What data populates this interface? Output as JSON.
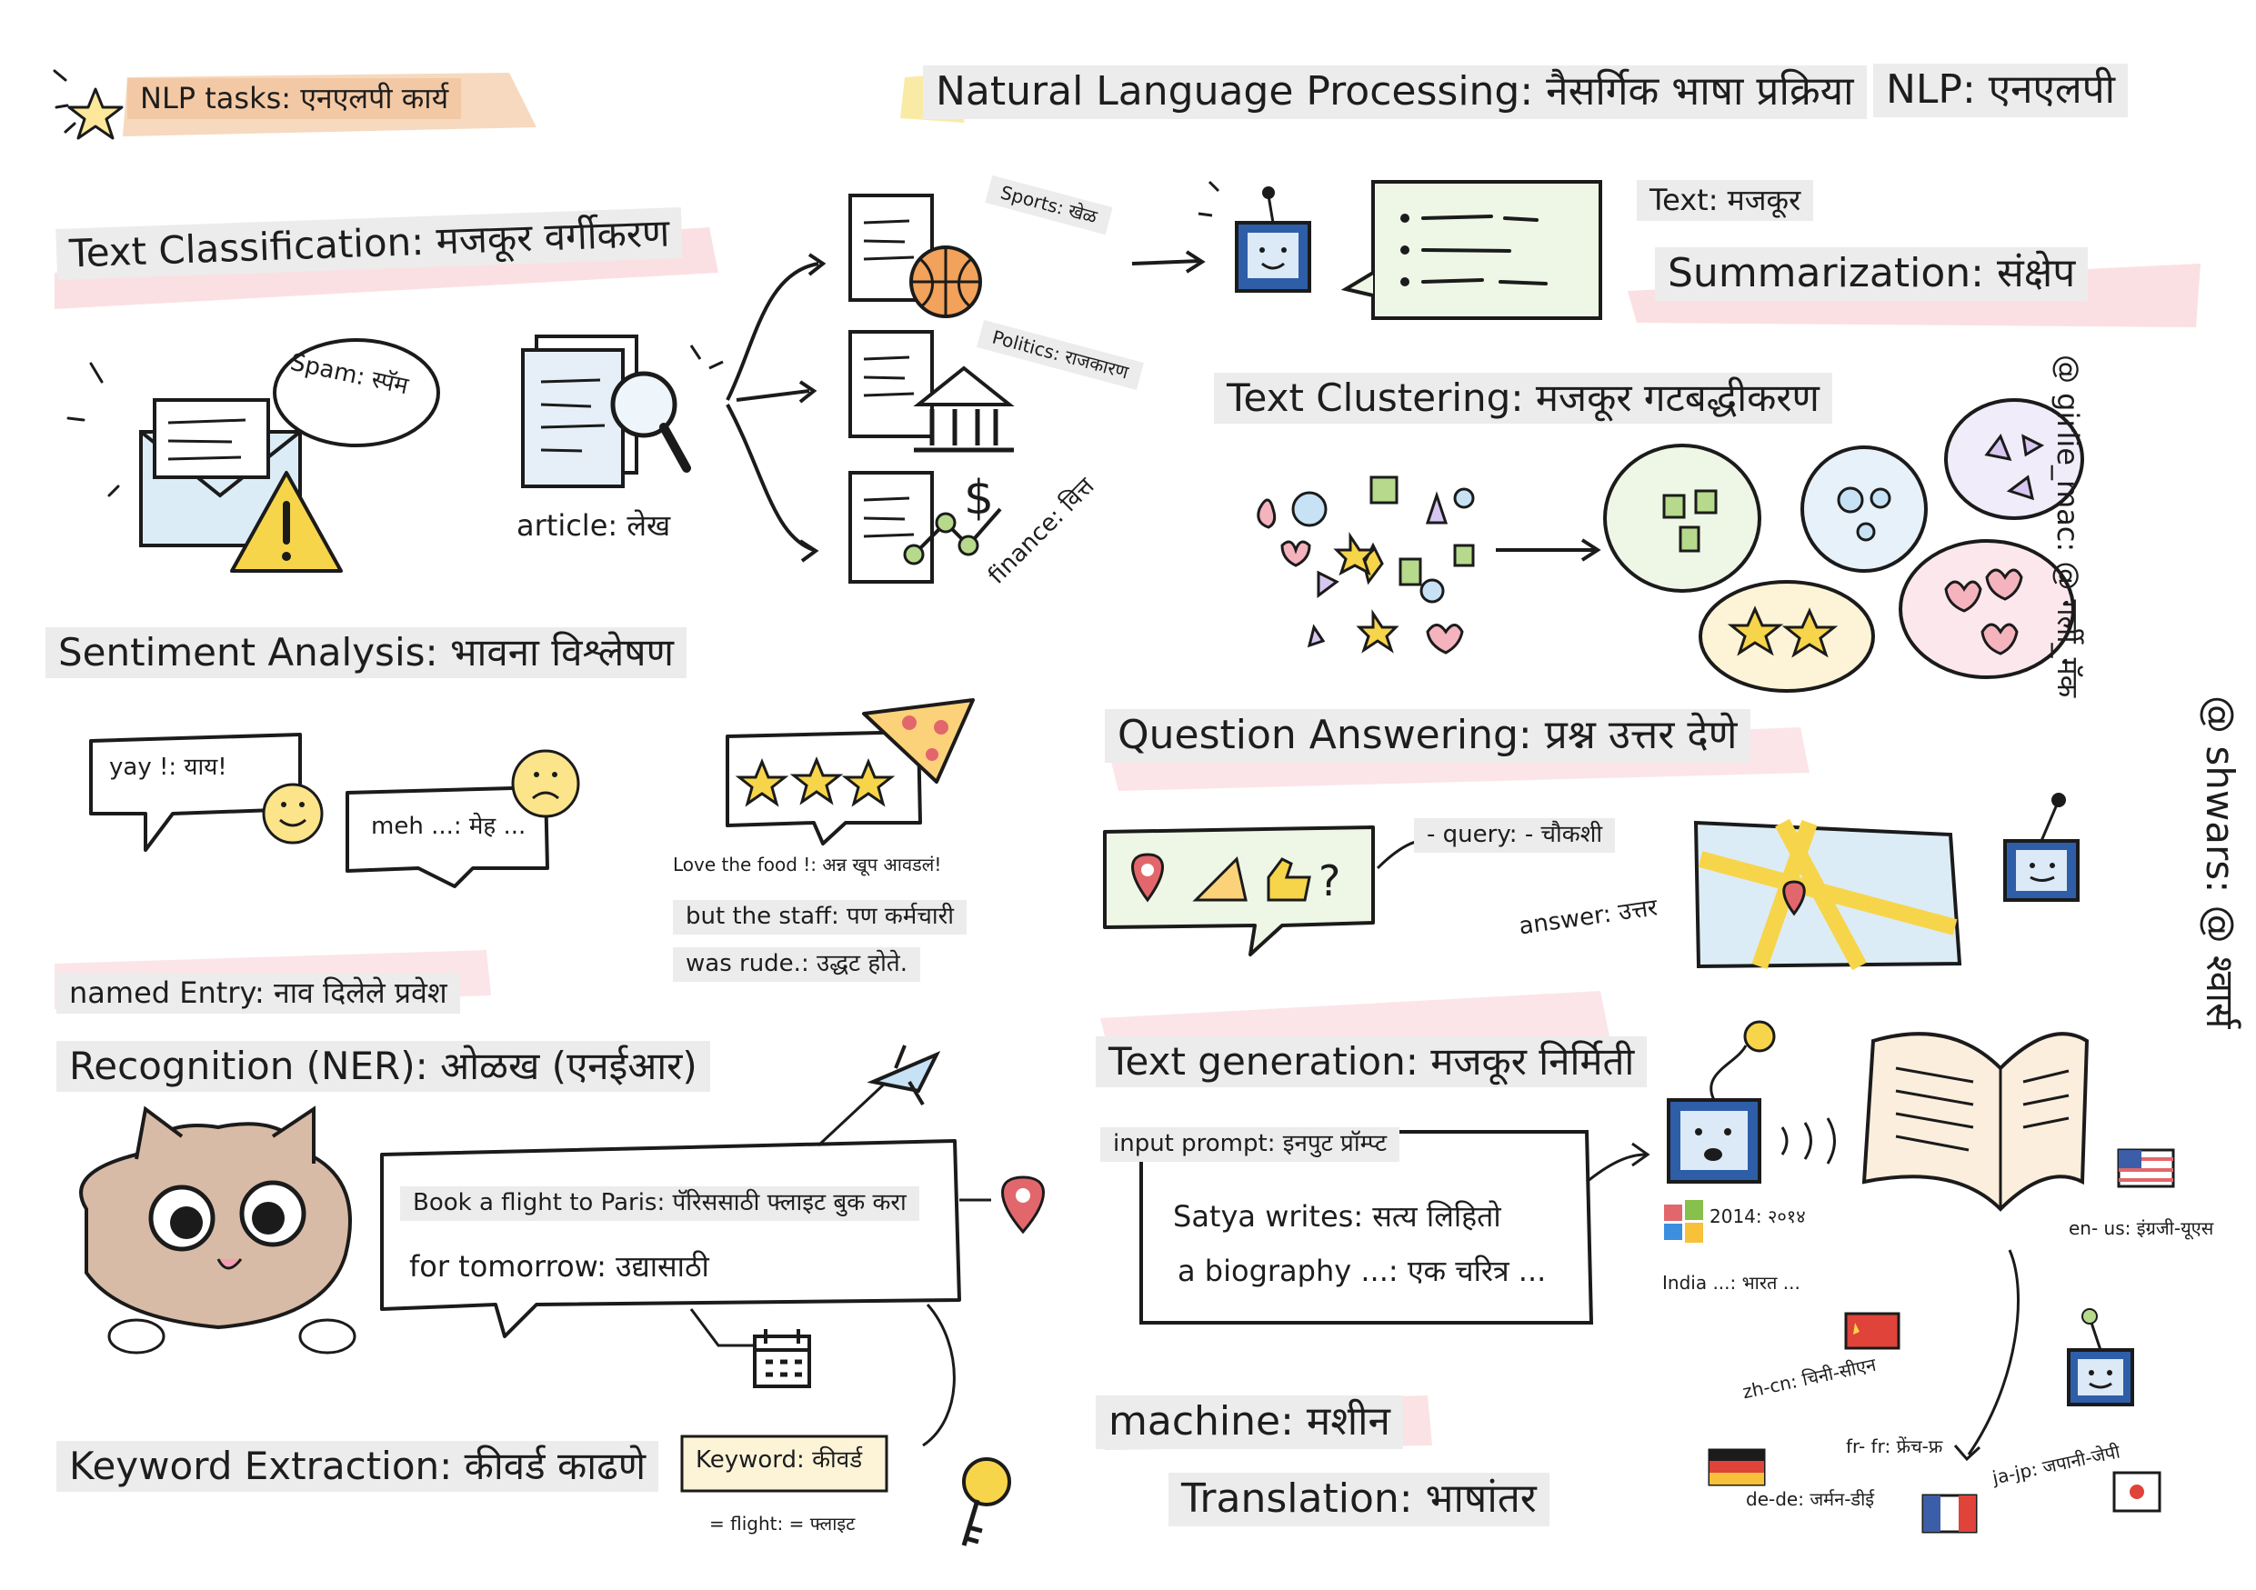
{
  "texts": {
    "nlp_tasks": "NLP tasks: एनएलपी कार्य",
    "nlp_title": "Natural Language Processing: नैसर्गिक भाषा प्रक्रिया",
    "nlp_abbr": "NLP: एनएलपी",
    "text_classification": "Text Classification: मजकूर वर्गीकरण",
    "spam": "Spam: स्पॅम",
    "article": "article: लेख",
    "sports": "Sports: खेळ",
    "politics": "Politics: राजकारण",
    "finance": "finance: वित्त",
    "text_label": "Text: मजकूर",
    "summarization": "Summarization: संक्षेप",
    "text_clustering": "Text Clustering: मजकूर गटबद्धीकरण",
    "sentiment_analysis": "Sentiment Analysis: भावना विश्लेषण",
    "yay": "yay !: याय!",
    "meh": "meh ...: मेह ...",
    "review_line1": "Love the food !: अन्न खूप आवडलं!",
    "review_line2": "but the staff: पण कर्मचारी",
    "review_line3": "was rude.: उद्धट होते.",
    "question_answering": "Question Answering: प्रश्न उत्तर देणे",
    "query": "- query: - चौकशी",
    "answer": "answer: उत्तर",
    "ner_line1": "named Entry: नाव दिलेले प्रवेश",
    "ner_line2": "Recognition (NER): ओळख (एनईआर)",
    "flight_line1": "Book a flight to Paris: पॅरिससाठी फ्लाइट बुक करा",
    "flight_line2": "for tomorrow: उद्यासाठी",
    "keyword_extraction": "Keyword Extraction: कीवर्ड काढणे",
    "keyword": "Keyword: कीवर्ड",
    "keyword_value": "= flight: = फ्लाइट",
    "text_generation": "Text generation: मजकूर निर्मिती",
    "input_prompt": "input prompt: इनपुट प्रॉम्प्ट",
    "prompt_line1": "Satya writes: सत्य लिहितो",
    "prompt_line2": "a biography ...: एक चरित्र ...",
    "year": "2014: २०१४",
    "india": "India ...: भारत ...",
    "machine": "machine: मशीन",
    "translation": "Translation: भाषांतर",
    "en_us": "en- us: इंग्रजी-यूएस",
    "zh_cn": "zh-cn: चिनी-सीएन",
    "fr_fr": "fr- fr: फ्रेंच-फ्र",
    "ja_jp": "ja-jp: जपानी-जेपी",
    "de_de": "de-de: जर्मन-डीई",
    "credit1": "@ girlie_mac: @ गर्ली_मॅक",
    "credit2": "@ shwars: @ श्वार्स"
  },
  "colors": {
    "accent_peach": "#f3c9a5",
    "accent_pink": "#f4b3bd",
    "accent_yellow": "#f7e27c",
    "label_gray": "#ececec",
    "ink": "#1b1b1b",
    "robot_blue": "#2e5ea8"
  },
  "icons": [
    "star-icon",
    "envelope-icon",
    "warning-icon",
    "document-icon",
    "magnifier-icon",
    "basketball-icon",
    "bank-icon",
    "dollar-chart-icon",
    "robot-icon",
    "chat-bubble-icon",
    "shape-cluster-icon",
    "smiley-icon",
    "pizza-icon",
    "thumbs-up-icon",
    "map-pin-icon",
    "map-icon",
    "cat-icon",
    "airplane-icon",
    "calendar-icon",
    "key-icon",
    "book-icon",
    "flag-icon",
    "windows-logo-icon"
  ]
}
